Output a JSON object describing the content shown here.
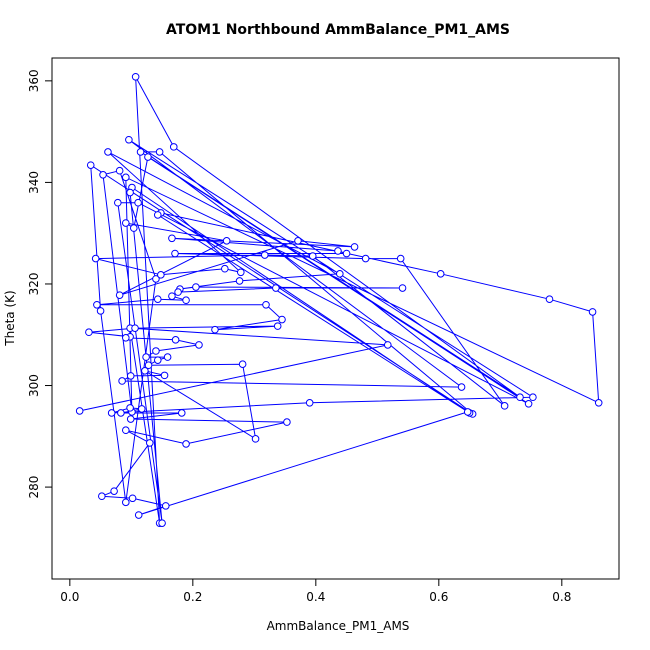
{
  "chart_data": {
    "type": "line",
    "title": "ATOM1 Northbound AmmBalance_PM1_AMS",
    "x_label": "AmmBalance_PM1_AMS",
    "y_label": "Theta (K)",
    "color": "#0000ff",
    "xlim": [
      -0.029,
      0.893
    ],
    "ylim": [
      261.9,
      364.5
    ],
    "xticks": [
      {
        "value": 0,
        "label": "0.0"
      },
      0.2,
      0.4,
      0.6,
      0.8
    ],
    "yticks": [
      280,
      300,
      320,
      340,
      360
    ],
    "x": [
      0.016,
      0.517,
      0.098,
      0.146,
      0.107,
      0.169,
      0.732,
      0.115,
      0.146,
      0.655,
      0.034,
      0.05,
      0.091,
      0.14,
      0.081,
      0.054,
      0.101,
      0.091,
      0.86,
      0.85,
      0.78,
      0.603,
      0.148,
      0.143,
      0.65,
      0.101,
      0.098,
      0.15,
      0.078,
      0.111,
      0.746,
      0.127,
      0.104,
      0.091,
      0.255,
      0.081,
      0.371,
      0.463,
      0.166,
      0.436,
      0.45,
      0.171,
      0.481,
      0.538,
      0.707,
      0.395,
      0.317,
      0.042,
      0.148,
      0.252,
      0.278,
      0.062,
      0.439,
      0.276,
      0.179,
      0.205,
      0.541,
      0.335,
      0.176,
      0.166,
      0.189,
      0.143,
      0.044,
      0.319,
      0.345,
      0.236,
      0.338,
      0.106,
      0.031,
      0.098,
      0.091,
      0.172,
      0.21,
      0.14,
      0.124,
      0.159,
      0.143,
      0.128,
      0.281,
      0.302,
      0.122,
      0.154,
      0.099,
      0.085,
      0.637,
      0.096,
      0.753,
      0.39,
      0.068,
      0.098,
      0.117,
      0.083,
      0.182,
      0.099,
      0.353,
      0.189,
      0.091,
      0.13,
      0.072,
      0.052,
      0.102,
      0.156,
      0.112,
      0.647
    ],
    "values": [
      295,
      308,
      311.3,
      272.9,
      360.8,
      347,
      297.7,
      346,
      346,
      294.4,
      343.4,
      314.7,
      277,
      321,
      342.3,
      341.5,
      294.8,
      341,
      296.6,
      314.5,
      317,
      322,
      334,
      333.6,
      294.6,
      339,
      338,
      272.9,
      336,
      336,
      296.4,
      345,
      331,
      332,
      328.5,
      317.8,
      328.5,
      327.3,
      329,
      326.5,
      326,
      326,
      325,
      325,
      296,
      325.5,
      325.7,
      325,
      321.8,
      323,
      322.3,
      346,
      322,
      320.6,
      319,
      319.4,
      319.2,
      319.2,
      318.4,
      317.6,
      316.8,
      317,
      315.9,
      315.9,
      313,
      311,
      311.7,
      311.3,
      310.5,
      309.6,
      309.4,
      309,
      308,
      306.8,
      305.6,
      305.6,
      305,
      304,
      304.2,
      289.5,
      302.9,
      302,
      301.9,
      300.9,
      299.7,
      348.4,
      297.7,
      296.6,
      294.6,
      295.6,
      295.4,
      294.6,
      294.6,
      293.4,
      292.8,
      288.5,
      291.2,
      288.7,
      279.2,
      278.2,
      277.8,
      276.3,
      274.5,
      294.8
    ]
  }
}
